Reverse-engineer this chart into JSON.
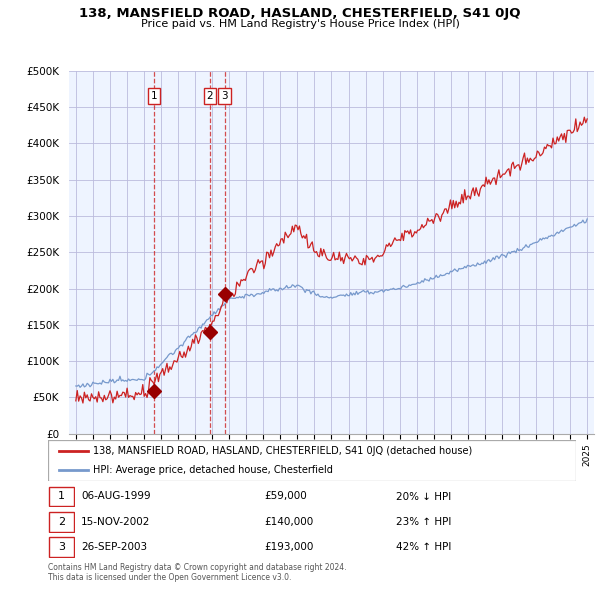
{
  "title": "138, MANSFIELD ROAD, HASLAND, CHESTERFIELD, S41 0JQ",
  "subtitle": "Price paid vs. HM Land Registry's House Price Index (HPI)",
  "sale_dates_float": [
    1999.59,
    2002.87,
    2003.73
  ],
  "sale_prices": [
    59000,
    140000,
    193000
  ],
  "sale_labels": [
    "1",
    "2",
    "3"
  ],
  "sale_date_labels": [
    "06-AUG-1999",
    "15-NOV-2002",
    "26-SEP-2003"
  ],
  "sale_price_labels": [
    "£59,000",
    "£140,000",
    "£193,000"
  ],
  "sale_hpi_labels": [
    "20% ↓ HPI",
    "23% ↑ HPI",
    "42% ↑ HPI"
  ],
  "hpi_line_color": "#7799cc",
  "price_line_color": "#cc2222",
  "sale_dot_color": "#990000",
  "vline_color": "#cc2222",
  "background_color": "#eef4ff",
  "plot_bg_color": "#eef4ff",
  "grid_color": "#bbbbdd",
  "ylim": [
    0,
    500000
  ],
  "yticks": [
    0,
    50000,
    100000,
    150000,
    200000,
    250000,
    300000,
    350000,
    400000,
    450000,
    500000
  ],
  "legend_items": [
    "138, MANSFIELD ROAD, HASLAND, CHESTERFIELD, S41 0JQ (detached house)",
    "HPI: Average price, detached house, Chesterfield"
  ],
  "footnote1": "Contains HM Land Registry data © Crown copyright and database right 2024.",
  "footnote2": "This data is licensed under the Open Government Licence v3.0."
}
